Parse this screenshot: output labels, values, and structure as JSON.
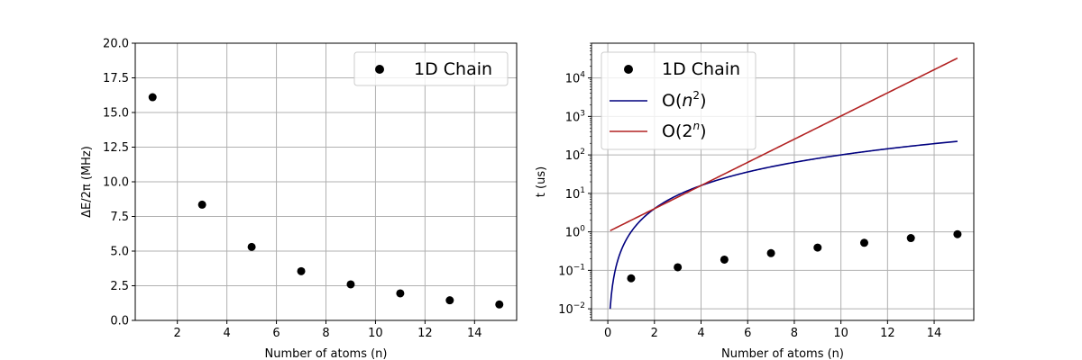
{
  "chart_data": [
    {
      "type": "scatter",
      "xlabel": "Number of atoms (n)",
      "ylabel": "ΔE/2π (MHz)",
      "xlim": [
        0.3,
        15.7
      ],
      "ylim": [
        0,
        20
      ],
      "xticks": [
        2,
        4,
        6,
        8,
        10,
        12,
        14
      ],
      "yticks": [
        0.0,
        2.5,
        5.0,
        7.5,
        10.0,
        12.5,
        15.0,
        17.5,
        20.0
      ],
      "ytick_labels": [
        "0.0",
        "2.5",
        "5.0",
        "7.5",
        "10.0",
        "12.5",
        "15.0",
        "17.5",
        "20.0"
      ],
      "grid": true,
      "legend_position": "upper right",
      "series": [
        {
          "name": "1D Chain",
          "color": "#000000",
          "x": [
            1,
            3,
            5,
            7,
            9,
            11,
            13,
            15
          ],
          "y": [
            16.1,
            8.35,
            5.3,
            3.55,
            2.6,
            1.95,
            1.45,
            1.15
          ]
        }
      ]
    },
    {
      "type": "line",
      "yscale": "log",
      "xlabel": "Number of atoms (n)",
      "ylabel": "t (us)",
      "xlim": [
        -0.7,
        15.7
      ],
      "ylim": [
        0.005,
        80000
      ],
      "xticks": [
        0,
        2,
        4,
        6,
        8,
        10,
        12,
        14
      ],
      "yticks": [
        0.01,
        0.1,
        1,
        10,
        100,
        1000,
        10000
      ],
      "ytick_labels": [
        {
          "base": "10",
          "exp": "−2"
        },
        {
          "base": "10",
          "exp": "−1"
        },
        {
          "base": "10",
          "exp": "0"
        },
        {
          "base": "10",
          "exp": "1"
        },
        {
          "base": "10",
          "exp": "2"
        },
        {
          "base": "10",
          "exp": "3"
        },
        {
          "base": "10",
          "exp": "4"
        }
      ],
      "grid": true,
      "legend_position": "upper left",
      "series": [
        {
          "name": "1D Chain",
          "kind": "scatter",
          "color": "#000000",
          "x": [
            1,
            3,
            5,
            7,
            9,
            11,
            13,
            15
          ],
          "y": [
            0.062,
            0.12,
            0.19,
            0.28,
            0.39,
            0.52,
            0.69,
            0.87
          ]
        },
        {
          "name_prefix": "O(",
          "name_base": "n",
          "name_exp": "2",
          "name_suffix": ")",
          "kind": "line",
          "formula": "n^2",
          "color": "#00007f",
          "x_range": [
            0.1,
            15
          ]
        },
        {
          "name_prefix": "O(",
          "name_base": "2",
          "name_exp": "n",
          "name_suffix": ")",
          "kind": "line",
          "formula": "2^n",
          "color": "#b22222",
          "x_range": [
            0.1,
            15
          ]
        }
      ]
    }
  ]
}
